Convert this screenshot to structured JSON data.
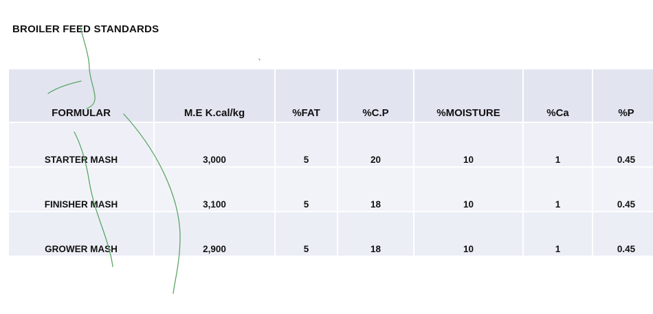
{
  "document": {
    "title": "BROILER FEED STANDARDS"
  },
  "table": {
    "headers": [
      "FORMULAR",
      "M.E K.cal/kg",
      "%FAT",
      "%C.P",
      "%MOISTURE",
      "%Ca",
      "%P"
    ],
    "rows": [
      [
        "STARTER MASH",
        "3,000",
        "5",
        "20",
        "10",
        "1",
        "0.45"
      ],
      [
        "FINISHER MASH",
        "3,100",
        "5",
        "18",
        "10",
        "1",
        "0.45"
      ],
      [
        "GROWER MASH",
        "2,900",
        "5",
        "18",
        "10",
        "1",
        "0.45"
      ]
    ]
  },
  "colors": {
    "header_fill": "#e2e4f0",
    "row_fill": "#eef0f7",
    "ink_annotation": "#5aa564"
  }
}
